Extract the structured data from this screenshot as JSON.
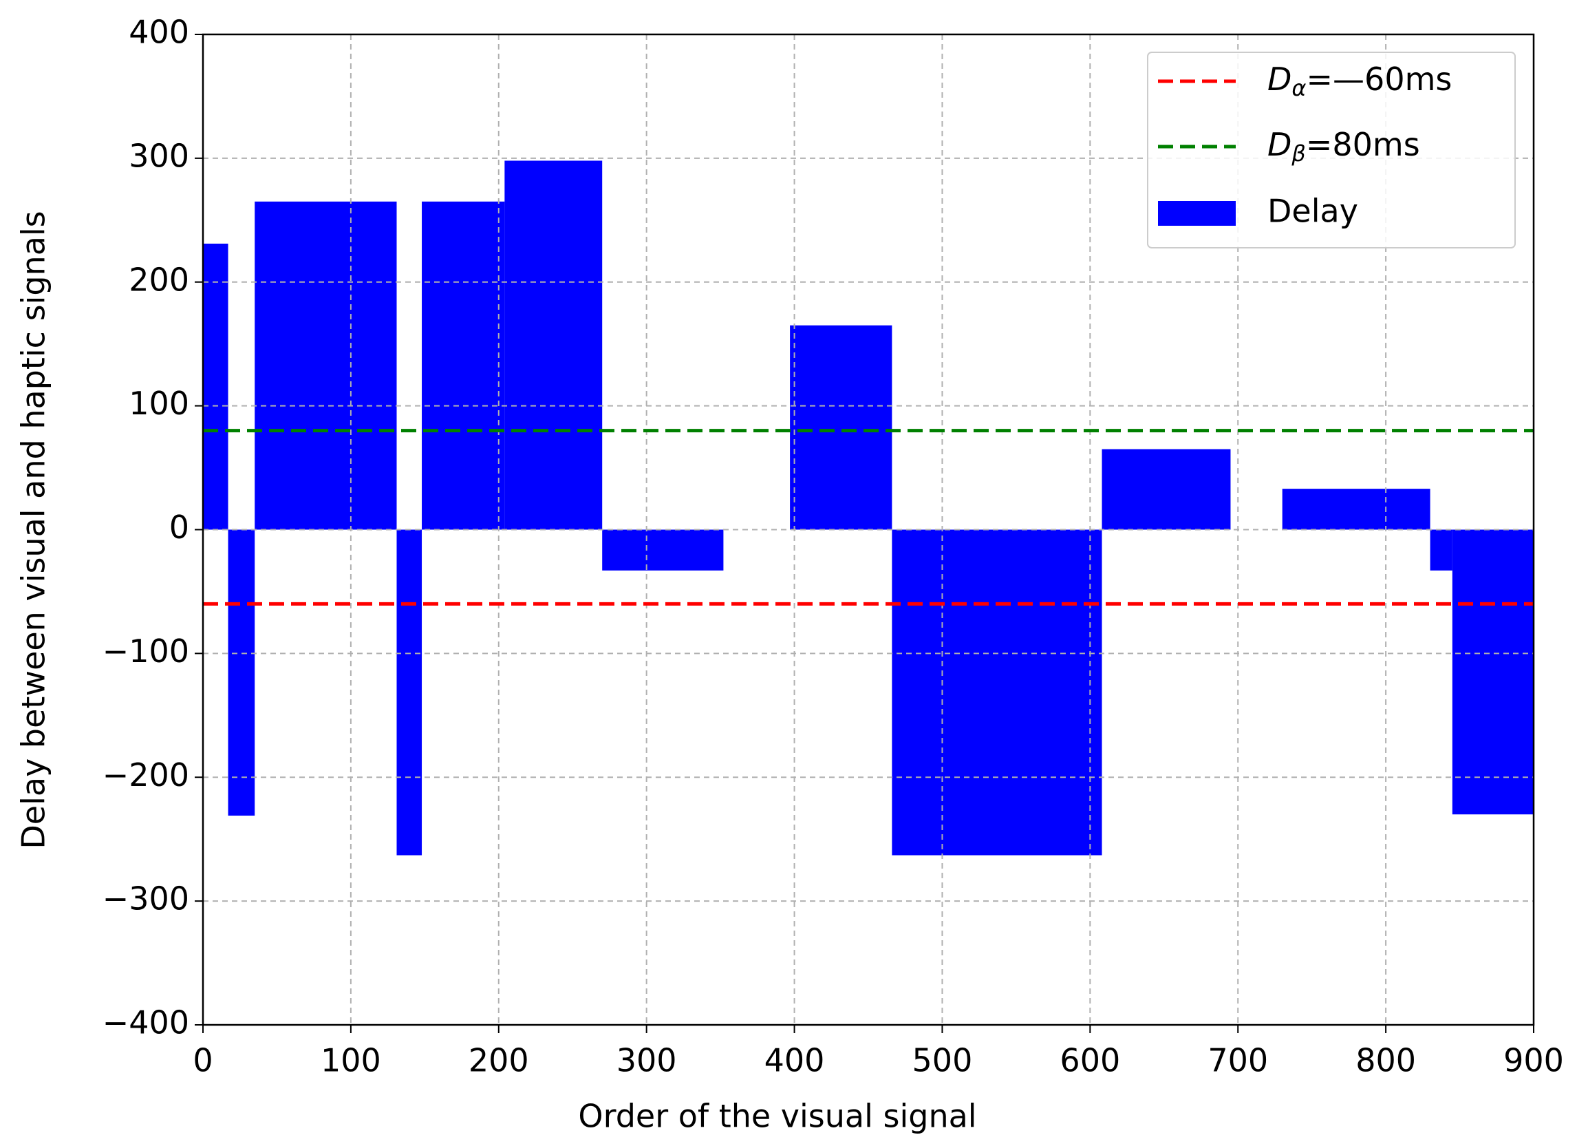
{
  "chart_data": {
    "type": "histogram",
    "xlabel": "Order of the visual signal",
    "ylabel": "Delay between visual and haptic signals",
    "bins": [
      0,
      17,
      35,
      131,
      148,
      204,
      270,
      352,
      397,
      466,
      608,
      695,
      730,
      830,
      845,
      900
    ],
    "series": [
      {
        "name": "Delay",
        "color": "#0000ff",
        "values": [
          231,
          -231,
          265,
          -263,
          265,
          298,
          -33,
          null,
          165,
          -263,
          65,
          null,
          33,
          -33,
          -230
        ]
      }
    ],
    "reference_lines": [
      {
        "name": [
          "D",
          "α",
          "=—60ms"
        ],
        "value": -60,
        "color": "#ff0000"
      },
      {
        "name": [
          "D",
          "β",
          "=80ms"
        ],
        "value": 80,
        "color": "#008000"
      }
    ],
    "xlim": [
      0,
      900
    ],
    "xticks": [
      0,
      100,
      200,
      300,
      400,
      500,
      600,
      700,
      800,
      900
    ],
    "ylim": [
      -400,
      400
    ],
    "yticks": [
      {
        "value": -400,
        "label": "−400"
      },
      {
        "value": -300,
        "label": "−300"
      },
      {
        "value": -200,
        "label": "−200"
      },
      {
        "value": -100,
        "label": "−100"
      },
      0,
      100,
      200,
      300,
      400
    ],
    "grid": true,
    "legend": "upper right"
  }
}
